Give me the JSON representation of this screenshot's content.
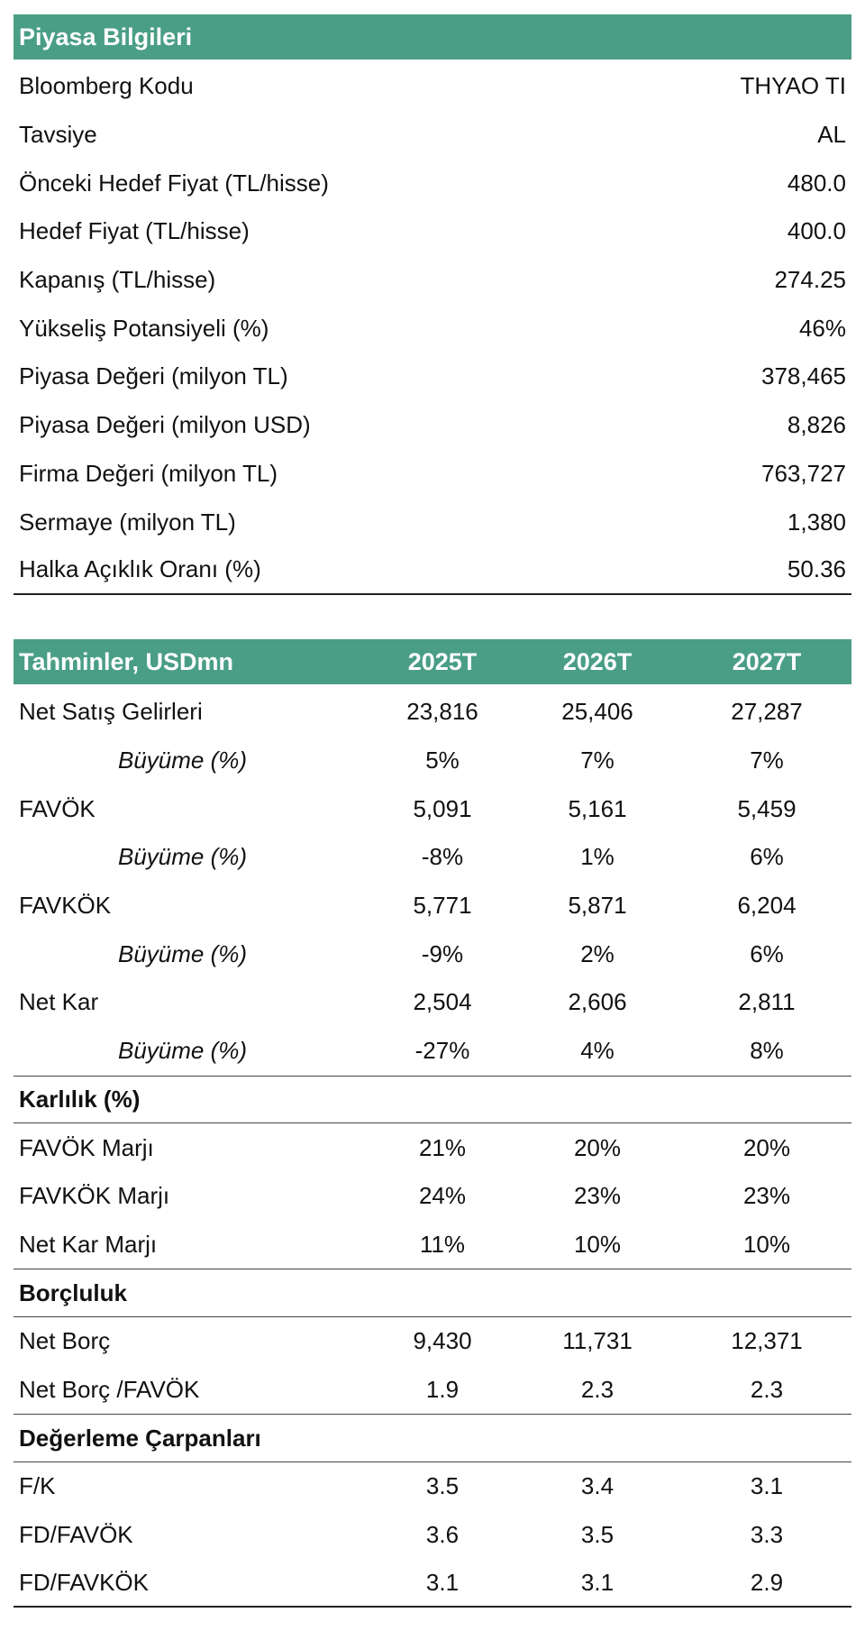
{
  "market": {
    "title": "Piyasa Bilgileri",
    "rows": [
      {
        "label": "Bloomberg Kodu",
        "value": "THYAO TI"
      },
      {
        "label": "Tavsiye",
        "value": "AL"
      },
      {
        "label": "Önceki Hedef Fiyat (TL/hisse)",
        "value": "480.0"
      },
      {
        "label": "Hedef Fiyat (TL/hisse)",
        "value": "400.0"
      },
      {
        "label": "Kapanış (TL/hisse)",
        "value": "274.25"
      },
      {
        "label": "Yükseliş Potansiyeli (%)",
        "value": "46%"
      },
      {
        "label": "Piyasa Değeri (milyon TL)",
        "value": "378,465"
      },
      {
        "label": "Piyasa Değeri (milyon USD)",
        "value": "8,826"
      },
      {
        "label": "Firma Değeri (milyon TL)",
        "value": "763,727"
      },
      {
        "label": "Sermaye (milyon TL)",
        "value": "1,380"
      },
      {
        "label": "Halka Açıklık Oranı (%)",
        "value": "50.36"
      }
    ]
  },
  "forecast": {
    "title": "Tahminler, USDmn",
    "years": [
      "2025T",
      "2026T",
      "2027T"
    ],
    "rows": [
      {
        "label": "Net Satış Gelirleri",
        "v": [
          "23,816",
          "25,406",
          "27,287"
        ]
      },
      {
        "label": "Büyüme (%)",
        "italic": true,
        "v": [
          "5%",
          "7%",
          "7%"
        ]
      },
      {
        "label": "FAVÖK",
        "v": [
          "5,091",
          "5,161",
          "5,459"
        ]
      },
      {
        "label": "Büyüme (%)",
        "italic": true,
        "v": [
          "-8%",
          "1%",
          "6%"
        ]
      },
      {
        "label": "FAVKÖK",
        "v": [
          "5,771",
          "5,871",
          "6,204"
        ]
      },
      {
        "label": "Büyüme (%)",
        "italic": true,
        "v": [
          "-9%",
          "2%",
          "6%"
        ]
      },
      {
        "label": "Net Kar",
        "v": [
          "2,504",
          "2,606",
          "2,811"
        ]
      },
      {
        "label": "Büyüme (%)",
        "italic": true,
        "v": [
          "-27%",
          "4%",
          "8%"
        ]
      },
      {
        "label": "Karlılık (%)",
        "section": true
      },
      {
        "label": "FAVÖK Marjı",
        "v": [
          "21%",
          "20%",
          "20%"
        ]
      },
      {
        "label": "FAVKÖK Marjı",
        "v": [
          "24%",
          "23%",
          "23%"
        ]
      },
      {
        "label": "Net Kar Marjı",
        "v": [
          "11%",
          "10%",
          "10%"
        ]
      },
      {
        "label": "Borçluluk",
        "section": true
      },
      {
        "label": "Net Borç",
        "v": [
          "9,430",
          "11,731",
          "12,371"
        ]
      },
      {
        "label": "Net Borç /FAVÖK",
        "v": [
          "1.9",
          "2.3",
          "2.3"
        ]
      },
      {
        "label": "Değerleme Çarpanları",
        "section": true
      },
      {
        "label": "F/K",
        "v": [
          "3.5",
          "3.4",
          "3.1"
        ]
      },
      {
        "label": "FD/FAVÖK",
        "v": [
          "3.6",
          "3.5",
          "3.3"
        ]
      },
      {
        "label": "FD/FAVKÖK",
        "v": [
          "3.1",
          "3.1",
          "2.9"
        ]
      }
    ]
  },
  "colors": {
    "header_bg": "#4a9e85"
  }
}
